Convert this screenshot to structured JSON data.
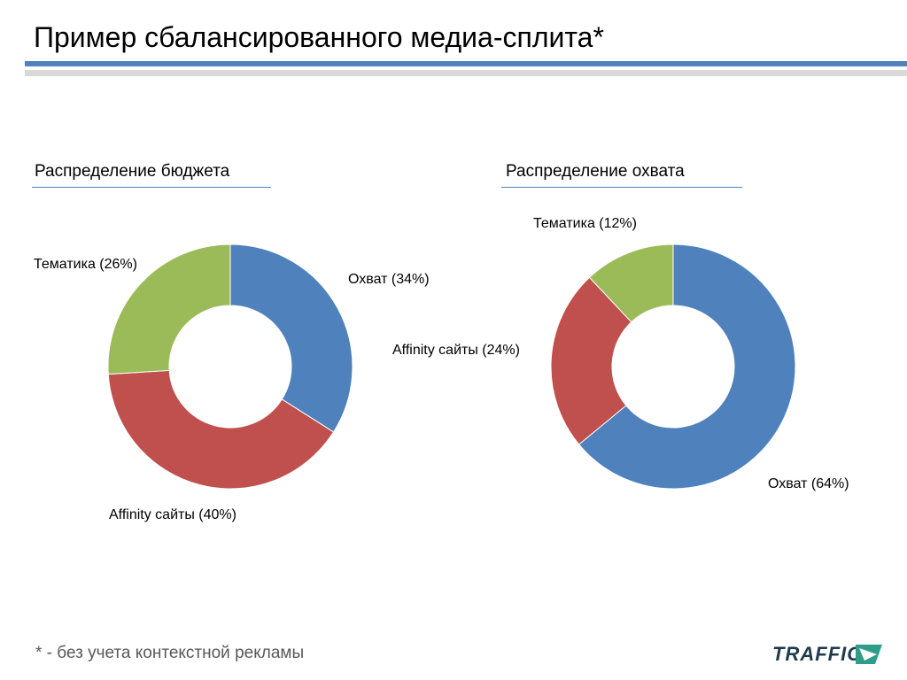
{
  "slide": {
    "title": "Пример сбалансированного медиа-сплита*",
    "footnote": "* - без учета контекстной рекламы",
    "logo": "TRAFFIC"
  },
  "colors": {
    "accent": "#4f81bd",
    "rule_gray": "#d9d9d9",
    "blue": "#4f81bd",
    "red": "#c0504d",
    "green": "#9bbb59"
  },
  "chart_data": [
    {
      "type": "pie",
      "variant": "doughnut",
      "title": "Распределение бюджета",
      "slices": [
        {
          "label": "Охват (34%)",
          "value": 34,
          "color": "#4f81bd"
        },
        {
          "label": "Affinity сайты (40%)",
          "value": 40,
          "color": "#c0504d"
        },
        {
          "label": "Тематика (26%)",
          "value": 26,
          "color": "#9bbb59"
        }
      ]
    },
    {
      "type": "pie",
      "variant": "doughnut",
      "title": "Распределение охвата",
      "slices": [
        {
          "label": "Охват (64%)",
          "value": 64,
          "color": "#4f81bd"
        },
        {
          "label": "Affinity сайты (24%)",
          "value": 24,
          "color": "#c0504d"
        },
        {
          "label": "Тематика (12%)",
          "value": 12,
          "color": "#9bbb59"
        }
      ]
    }
  ]
}
